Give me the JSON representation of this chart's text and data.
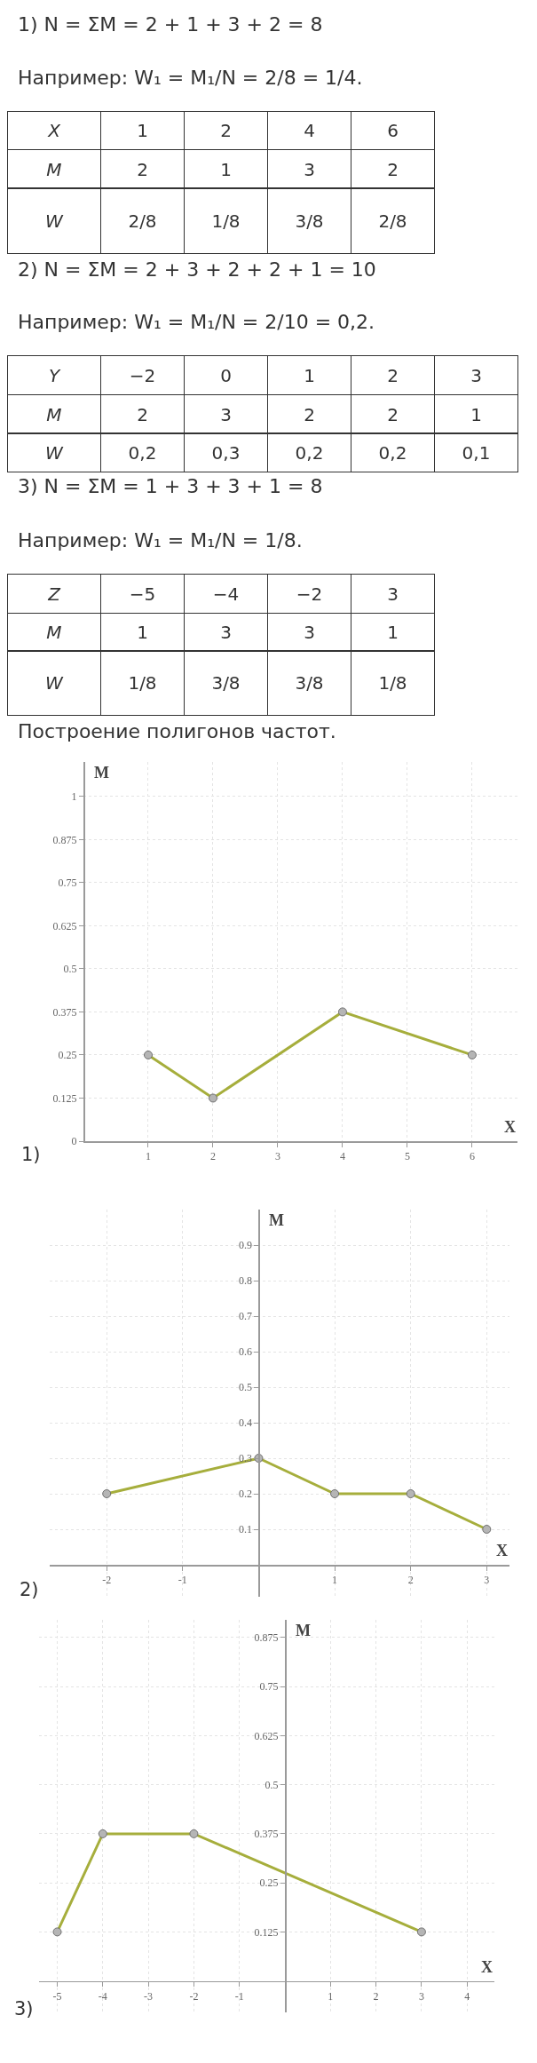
{
  "chart_data": [
    {
      "type": "heatmap",
      "title": "1) N = ΣM = 2 + 1 + 3 + 2 = 8",
      "subtitle": "Например: W₁ = M₁/N = 2/8 = 1/4.",
      "xlabel": "X",
      "categories": [
        "1",
        "2",
        "4",
        "6"
      ],
      "y_categories": [
        "M"
      ],
      "cells": [
        [
          2,
          1,
          3,
          2
        ]
      ],
      "data_labels": true
    },
    {
      "type": "heatmap",
      "categories": [
        null,
        null,
        null,
        null
      ],
      "y_categories": [
        "W"
      ],
      "cells": [
        [
          null,
          null,
          null,
          null
        ]
      ],
      "cell_labels": [
        [
          "2/8",
          "1/8",
          "3/8",
          "2/8"
        ]
      ],
      "tick_labels": "y"
    },
    {
      "type": "heatmap",
      "title": "2) N = ΣM = 2 + 3 + 2 + 2 + 1 = 10",
      "subtitle": "Например: W₁ = M₁/N = 2/10 = 0,2.",
      "xlabel": "Y",
      "categories": [
        "−2",
        "0",
        "1",
        "2",
        "3"
      ],
      "y_categories": [
        "M"
      ],
      "cells": [
        [
          2,
          3,
          2,
          2,
          1
        ]
      ],
      "data_labels": true
    },
    {
      "type": "heatmap",
      "categories": [
        null,
        null,
        null,
        null,
        null
      ],
      "y_categories": [
        "W"
      ],
      "cells": [
        [
          null,
          null,
          null,
          null,
          null
        ]
      ],
      "cell_labels": [
        [
          "0,2",
          "0,3",
          "0,2",
          "0,2",
          "0,1"
        ]
      ],
      "tick_labels": "y"
    },
    {
      "type": "heatmap",
      "title": "3) N = ΣM = 1 + 3 + 3 + 1 = 8",
      "subtitle": "Например: W₁ = M₁/N = 1/8.",
      "xlabel": "Z",
      "categories": [
        "−5",
        "−4",
        "−2",
        "3"
      ],
      "y_categories": [
        "M"
      ],
      "cells": [
        [
          1,
          3,
          3,
          1
        ]
      ],
      "data_labels": true
    },
    {
      "type": "heatmap",
      "categories": [
        null,
        null,
        null,
        null
      ],
      "y_categories": [
        "W"
      ],
      "cells": [
        [
          null,
          null,
          null,
          null
        ]
      ],
      "cell_labels": [
        [
          "1/8",
          "3/8",
          "3/8",
          "1/8"
        ]
      ],
      "tick_labels": "y"
    },
    {
      "type": "line",
      "title": "Построение полигонов частот.",
      "xlabel": "X",
      "ylabel": "M",
      "x": [
        1,
        2,
        4,
        6
      ],
      "series": [
        {
          "color": "#a6ae3c",
          "values": [
            0.25,
            0.125,
            0.375,
            0.25
          ]
        }
      ],
      "xlim": [
        0,
        6.7
      ],
      "ylim": [
        0,
        1.1
      ],
      "xticks": [
        1,
        2,
        3,
        4,
        5,
        6
      ],
      "yticks": [
        0,
        0.125,
        0.25,
        0.375,
        0.5,
        0.625,
        0.75,
        0.875,
        1
      ],
      "grid": true,
      "marker": "circle",
      "annotations": [
        "1)"
      ]
    },
    {
      "type": "line",
      "xlabel": "X",
      "ylabel": "M",
      "x": [
        -2,
        0,
        1,
        2,
        3
      ],
      "series": [
        {
          "color": "#a6ae3c",
          "values": [
            0.2,
            0.3,
            0.2,
            0.2,
            0.1
          ]
        }
      ],
      "xlim": [
        -2.75,
        3.3
      ],
      "ylim": [
        -0.09,
        1.0
      ],
      "xticks": [
        -2,
        -1,
        1,
        2,
        3
      ],
      "yticks": [
        0.1,
        0.2,
        0.3,
        0.4,
        0.5,
        0.6,
        0.7,
        0.8,
        0.9
      ],
      "grid": true,
      "marker": "circle",
      "annotations": [
        "2)"
      ]
    },
    {
      "type": "line",
      "xlabel": "X",
      "ylabel": "M",
      "x": [
        -5,
        -4,
        -2,
        3
      ],
      "series": [
        {
          "color": "#a6ae3c",
          "values": [
            0.125,
            0.375,
            0.375,
            0.125
          ]
        }
      ],
      "xlim": [
        -5.4,
        4.6
      ],
      "ylim": [
        -0.08,
        0.92
      ],
      "xticks": [
        -5,
        -4,
        -3,
        -2,
        -1,
        1,
        2,
        3,
        4
      ],
      "yticks": [
        0.125,
        0.25,
        0.375,
        0.5,
        0.625,
        0.75,
        0.875
      ],
      "grid": true,
      "marker": "circle",
      "annotations": [
        "3)"
      ]
    }
  ]
}
